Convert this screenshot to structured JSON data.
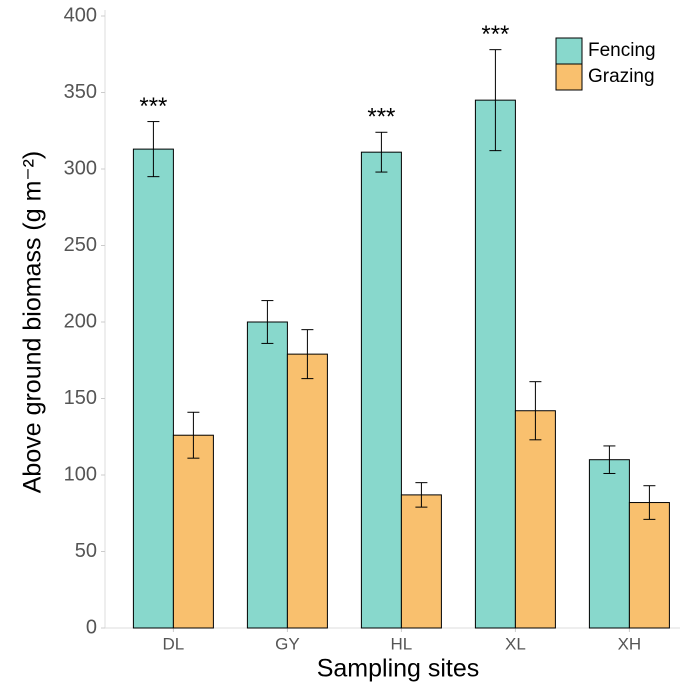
{
  "chart_data": {
    "type": "bar",
    "x_label": "Sampling sites",
    "y_label": "Above ground biomass (g m⁻²)",
    "categories": [
      "DL",
      "GY",
      "HL",
      "XL",
      "XH"
    ],
    "series": [
      {
        "name": "Fencing",
        "color": "#88d8cc",
        "values": [
          313,
          200,
          311,
          345,
          110
        ],
        "errors": [
          18,
          14,
          13,
          33,
          9
        ]
      },
      {
        "name": "Grazing",
        "color": "#f9c06e",
        "values": [
          126,
          179,
          87,
          142,
          82
        ],
        "errors": [
          15,
          16,
          8,
          19,
          11
        ]
      }
    ],
    "annotations": [
      "***",
      null,
      "***",
      "***",
      null
    ],
    "ylim": [
      0,
      400
    ],
    "yticks": [
      0,
      50,
      100,
      150,
      200,
      250,
      300,
      350,
      400
    ],
    "grid": false,
    "legend": "top-right"
  }
}
